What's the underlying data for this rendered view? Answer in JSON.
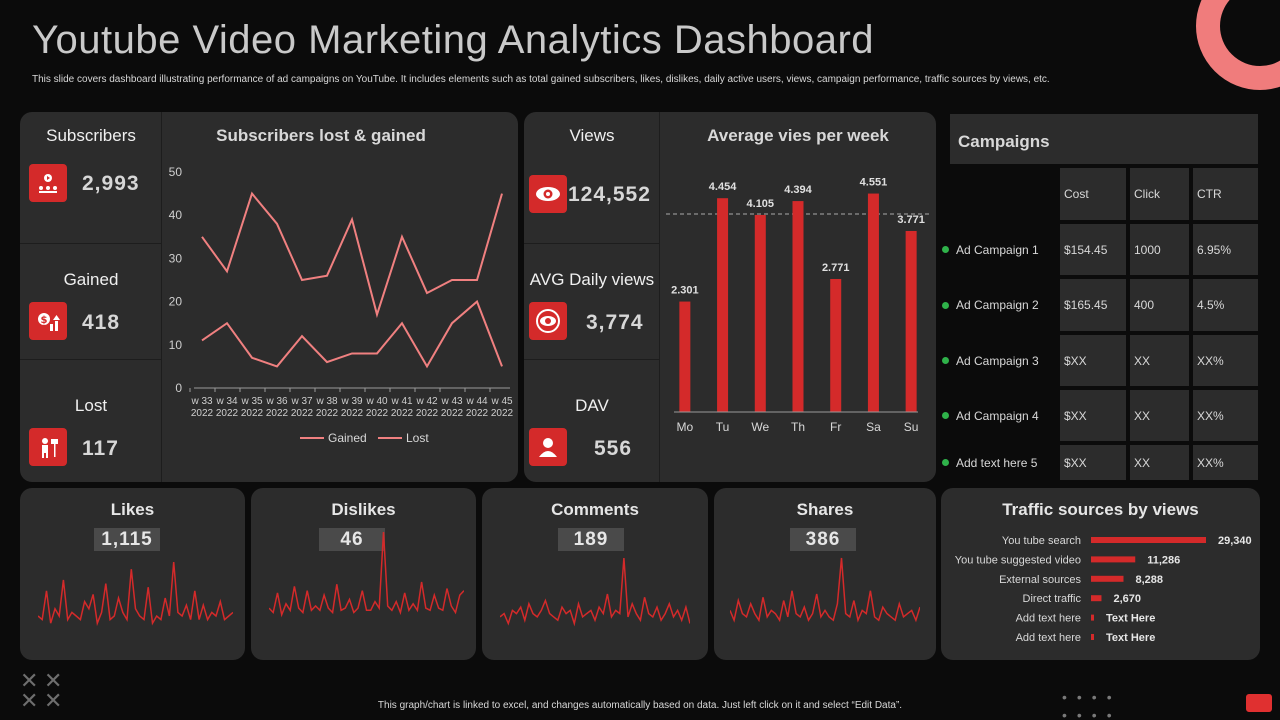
{
  "header": {
    "title": "Youtube Video Marketing Analytics Dashboard",
    "subtitle": "This slide covers dashboard illustrating performance of ad campaigns on YouTube. It includes elements such as total gained subscribers, likes, dislikes, daily active users, views, campaign performance, traffic sources by views, etc."
  },
  "subscribers_panel": {
    "kpis": [
      {
        "label": "Subscribers",
        "value": "2,993",
        "icon": "subscribers-icon"
      },
      {
        "label": "Gained",
        "value": "418",
        "icon": "gained-money-icon"
      },
      {
        "label": "Lost",
        "value": "117",
        "icon": "lost-user-icon"
      }
    ],
    "chart_title": "Subscribers  lost & gained"
  },
  "views_panel": {
    "kpis": [
      {
        "label": "Views",
        "value": "124,552",
        "icon": "eye-icon"
      },
      {
        "label": "AVG Daily views",
        "value": "3,774",
        "icon": "eye-circle-icon"
      },
      {
        "label": "DAV",
        "value": "556",
        "icon": "user-icon"
      }
    ],
    "chart_title": "Average vies per week"
  },
  "campaigns": {
    "title": "Campaigns",
    "columns": [
      "Cost",
      "Click",
      "CTR"
    ],
    "rows": [
      {
        "name": "Ad Campaign 1",
        "cost": "$154.45",
        "click": "1000",
        "ctr": "6.95%"
      },
      {
        "name": "Ad Campaign 2",
        "cost": "$165.45",
        "click": "400",
        "ctr": "4.5%"
      },
      {
        "name": "Ad Campaign 3",
        "cost": "$XX",
        "click": "XX",
        "ctr": "XX%"
      },
      {
        "name": "Ad Campaign 4",
        "cost": "$XX",
        "click": "XX",
        "ctr": "XX%"
      },
      {
        "name": "Add text here 5",
        "cost": "$XX",
        "click": "XX",
        "ctr": "XX%"
      }
    ],
    "status_color": "#2fb24a"
  },
  "cards": [
    {
      "title": "Likes",
      "value": "1,115"
    },
    {
      "title": "Dislikes",
      "value": "46"
    },
    {
      "title": "Comments",
      "value": "189"
    },
    {
      "title": "Shares",
      "value": "386"
    }
  ],
  "traffic_title": "Traffic sources by views",
  "footer": "This graph/chart is linked to excel, and changes automatically based on data. Just left click on it and select “Edit Data”.",
  "colors": {
    "accent": "#d42a2a",
    "line": "#f08080",
    "panel": "#2c2c2c",
    "background": "#0b0b0b"
  },
  "chart_data": [
    {
      "type": "line",
      "title": "Subscribers  lost & gained",
      "categories": [
        "w 33\n2022",
        "w 34\n2022",
        "w 35\n2022",
        "w 36\n2022",
        "w 37\n2022",
        "w 38\n2022",
        "w 39\n2022",
        "w 40\n2022",
        "w 41\n2022",
        "w 42\n2022",
        "w 43\n2022",
        "w 44\n2022",
        "w 45\n2022"
      ],
      "series": [
        {
          "name": "Gained",
          "values": [
            35,
            27,
            45,
            38,
            25,
            26,
            39,
            17,
            35,
            22,
            25,
            25,
            45
          ]
        },
        {
          "name": "Lost",
          "values": [
            11,
            15,
            7,
            5,
            12,
            6,
            8,
            8,
            15,
            5,
            15,
            20,
            5
          ]
        }
      ],
      "yticks": [
        "0",
        "10",
        "20",
        "30",
        "40",
        "50"
      ],
      "ylim": [
        0,
        50
      ],
      "legend": "bottom"
    },
    {
      "type": "bar",
      "title": "Average vies per week",
      "categories": [
        "Mo",
        "Tu",
        "We",
        "Th",
        "Fr",
        "Sa",
        "Su"
      ],
      "values": [
        2.301,
        4.454,
        4.105,
        4.394,
        2.771,
        4.551,
        3.771
      ],
      "labels": [
        "2.301",
        "4.454",
        "4.105",
        "4.394",
        "2.771",
        "4.551",
        "3.771"
      ],
      "average_line": 3.771,
      "ylim": [
        0,
        5
      ]
    },
    {
      "type": "bar",
      "orientation": "horizontal",
      "title": "Traffic sources by views",
      "categories": [
        "You tube search",
        "You tube suggested video",
        "External sources",
        "Direct traffic",
        "Add text here",
        "Add text here"
      ],
      "values": [
        29340,
        11286,
        8288,
        2670,
        400,
        300
      ],
      "labels": [
        "29,340",
        "11,286",
        "8,288",
        "2,670",
        "Text Here",
        "Text Here"
      ]
    },
    {
      "type": "line",
      "title": "Likes",
      "values": [
        5,
        4,
        12,
        3,
        7,
        5,
        15,
        4,
        6,
        5,
        4,
        9,
        7,
        11,
        3,
        6,
        14,
        4,
        5,
        10,
        6,
        4,
        18,
        7,
        5,
        4,
        13,
        3,
        5,
        4,
        10,
        5,
        20,
        6,
        5,
        8,
        4,
        12,
        4,
        8,
        4,
        6,
        5,
        9,
        4,
        5,
        6
      ]
    },
    {
      "type": "line",
      "title": "Dislikes",
      "values": [
        5,
        3,
        12,
        2,
        7,
        4,
        15,
        5,
        3,
        13,
        4,
        6,
        4,
        11,
        5,
        3,
        16,
        4,
        5,
        9,
        3,
        5,
        13,
        4,
        4,
        8,
        5,
        40,
        6,
        4,
        8,
        3,
        12,
        4,
        7,
        4,
        17,
        5,
        4,
        11,
        5,
        4,
        14,
        6,
        3,
        11,
        13
      ]
    },
    {
      "type": "line",
      "title": "Comments",
      "values": [
        4,
        5,
        2,
        6,
        5,
        7,
        3,
        8,
        5,
        4,
        6,
        9,
        5,
        4,
        3,
        7,
        5,
        6,
        2,
        8,
        4,
        5,
        6,
        3,
        7,
        5,
        11,
        4,
        6,
        5,
        22,
        4,
        8,
        5,
        3,
        10,
        5,
        4,
        7,
        3,
        5,
        8,
        4,
        6,
        3,
        7,
        2
      ]
    },
    {
      "type": "line",
      "title": "Shares",
      "values": [
        6,
        3,
        9,
        5,
        4,
        8,
        5,
        3,
        10,
        4,
        6,
        5,
        3,
        9,
        4,
        12,
        5,
        4,
        7,
        3,
        5,
        11,
        4,
        6,
        4,
        3,
        8,
        22,
        5,
        4,
        9,
        3,
        6,
        5,
        12,
        4,
        3,
        7,
        5,
        4,
        3,
        8,
        4,
        5,
        6,
        3,
        7
      ]
    }
  ]
}
